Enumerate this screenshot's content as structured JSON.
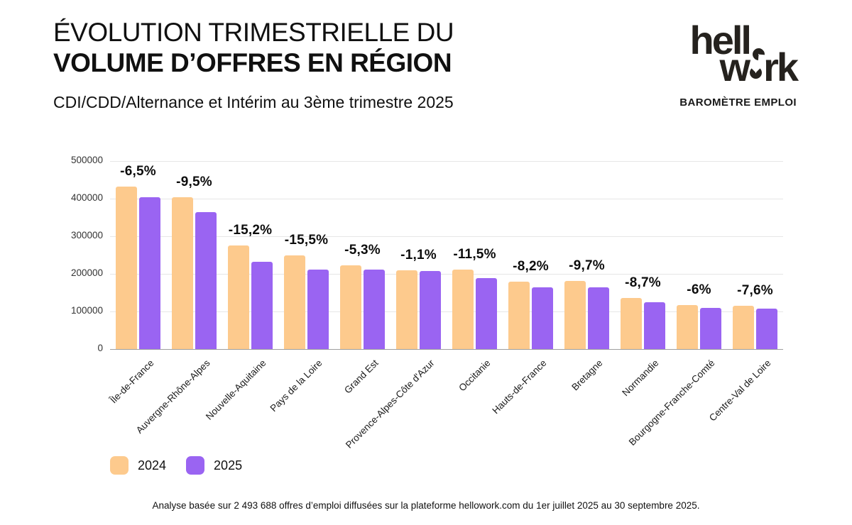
{
  "header": {
    "title_line1": "ÉVOLUTION TRIMESTRIELLE DU",
    "title_line2": "VOLUME D’OFFRES EN RÉGION",
    "subtitle": "CDI/CDD/Alternance et Intérim au 3ème trimestre 2025"
  },
  "logo": {
    "line1": "hell",
    "line2_left": "w",
    "line2_right": "rk",
    "tagline": "BAROMÈTRE EMPLOI"
  },
  "legend": [
    {
      "label": "2024",
      "color": "#FDCA8D"
    },
    {
      "label": "2025",
      "color": "#9A64F2"
    }
  ],
  "footer": "Analyse basée sur 2 493 688 offres d’emploi diffusées sur la plateforme hellowork.com du 1er juillet 2025 au 30 septembre 2025.",
  "chart_data": {
    "type": "bar",
    "title": "Évolution trimestrielle du volume d’offres en région",
    "categories": [
      "Île-de-France",
      "Auvergne-Rhône-Alpes",
      "Nouvelle-Aquitaine",
      "Pays de la Loire",
      "Grand Est",
      "Provence-Alpes-Côte d'Azur",
      "Occitanie",
      "Hauts-de-France",
      "Bretagne",
      "Normandie",
      "Bourgogne-Franche-Comté",
      "Centre-Val de Loire"
    ],
    "series": [
      {
        "name": "2024",
        "color": "#FDCA8D",
        "values": [
          432000,
          404000,
          275000,
          250000,
          223000,
          209000,
          212000,
          180000,
          182000,
          136000,
          117000,
          116000
        ]
      },
      {
        "name": "2025",
        "color": "#9A64F2",
        "values": [
          404000,
          365000,
          233000,
          211000,
          211000,
          207000,
          188000,
          165000,
          164000,
          124000,
          110000,
          107000
        ]
      }
    ],
    "change_labels": [
      "-6,5%",
      "-9,5%",
      "-15,2%",
      "-15,5%",
      "-5,3%",
      "-1,1%",
      "-11,5%",
      "-8,2%",
      "-9,7%",
      "-8,7%",
      "-6%",
      "-7,6%"
    ],
    "xlabel": "",
    "ylabel": "",
    "ylim": [
      0,
      500000
    ],
    "yticks": [
      0,
      100000,
      200000,
      300000,
      400000,
      500000
    ],
    "grid": "horizontal",
    "legend_position": "bottom-left"
  }
}
